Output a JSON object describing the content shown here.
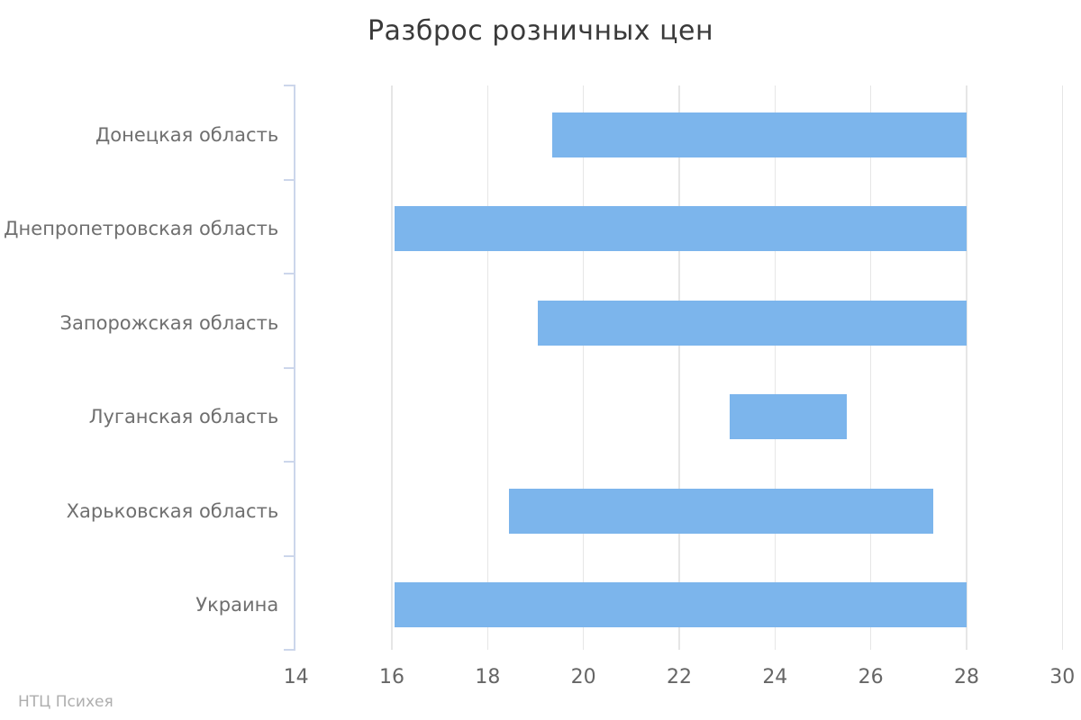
{
  "chart_data": {
    "type": "bar",
    "variant": "horizontal-range-bars",
    "title": "Разброс розничных цен",
    "categories": [
      "Донецкая область",
      "Днепропетровская область",
      "Запорожская область",
      "Луганская область",
      "Харьковская область",
      "Украина"
    ],
    "bars": [
      {
        "category": "Донецкая область",
        "low": 19.35,
        "high": 28.0
      },
      {
        "category": "Днепропетровская область",
        "low": 16.05,
        "high": 28.0
      },
      {
        "category": "Запорожская область",
        "low": 19.05,
        "high": 28.0
      },
      {
        "category": "Луганская область",
        "low": 23.05,
        "high": 25.5
      },
      {
        "category": "Харьковская область",
        "low": 18.45,
        "high": 27.3
      },
      {
        "category": "Украина",
        "low": 16.05,
        "high": 28.0
      }
    ],
    "xlim": [
      14,
      30
    ],
    "x_ticks": [
      14,
      16,
      18,
      20,
      22,
      24,
      26,
      28,
      30
    ],
    "xlabel": "",
    "ylabel": "",
    "grid": "vertical",
    "legend": "none"
  },
  "watermark": "НТЦ Психея",
  "colors": {
    "bar_fill": "#7cb5ec",
    "gridline": "#e6e6e6",
    "axis_line": "#ccd6eb",
    "title_text": "#3a3a3a",
    "category_text": "#6f6f6f",
    "tick_text": "#666666",
    "watermark_text": "#aeaeae",
    "background": "#ffffff"
  }
}
